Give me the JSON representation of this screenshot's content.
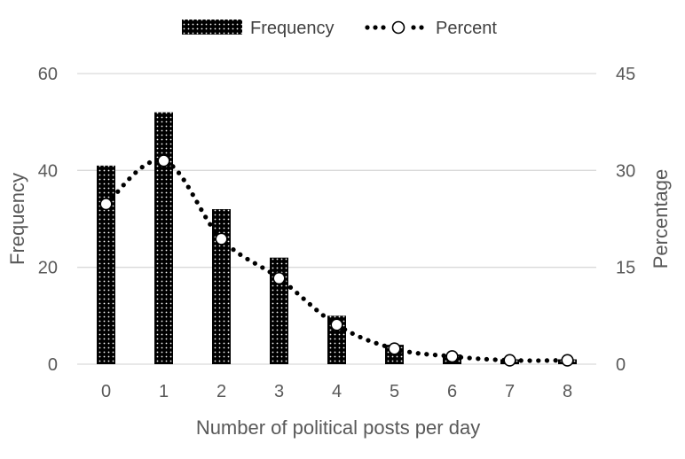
{
  "chart_data": {
    "type": "bar",
    "title": "",
    "xlabel": "Number of political posts per day",
    "ylabel": "Frequency",
    "y2label": "Percentage",
    "categories": [
      "0",
      "1",
      "2",
      "3",
      "4",
      "5",
      "6",
      "7",
      "8"
    ],
    "ylim": [
      0,
      60
    ],
    "y2lim": [
      0,
      45
    ],
    "yticks": [
      "0",
      "20",
      "40",
      "60"
    ],
    "y2ticks": [
      "0",
      "15",
      "30",
      "45"
    ],
    "grid": true,
    "legend_position": "top",
    "series": [
      {
        "name": "Frequency",
        "type": "bar",
        "axis": "left",
        "values": [
          41,
          52,
          32,
          22,
          10,
          4,
          2,
          1,
          1
        ]
      },
      {
        "name": "Percent",
        "type": "line",
        "style": "dotted-with-circle-markers",
        "axis": "right",
        "values": [
          24.8,
          31.5,
          19.4,
          13.3,
          6.1,
          2.4,
          1.2,
          0.6,
          0.6
        ]
      }
    ],
    "colors": {
      "bar_fill": "#000000",
      "bar_dots": "#ffffff",
      "line": "#000000",
      "marker_fill": "#ffffff",
      "grid": "#d9d9d9",
      "text": "#595959"
    }
  }
}
